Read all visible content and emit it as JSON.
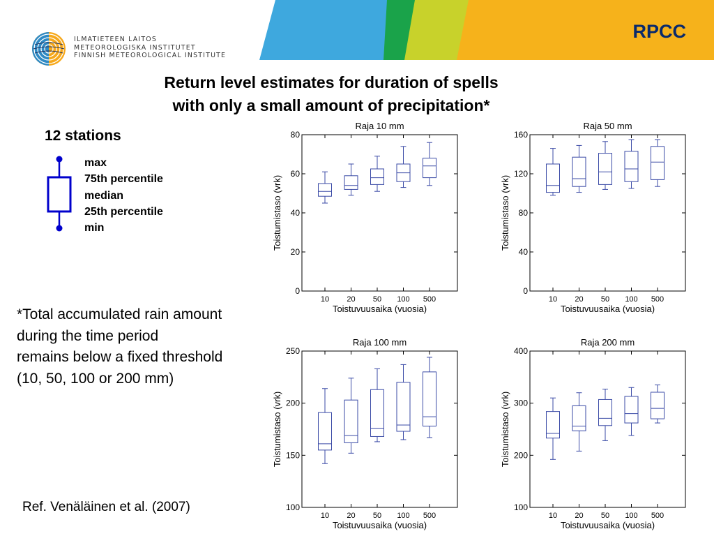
{
  "header": {
    "logo_lines": [
      "ILMATIETEEN LAITOS",
      "METEOROLOGISKA INSTITUTET",
      "FINNISH METEOROLOGICAL INSTITUTE"
    ],
    "tag": "RPCC",
    "colors": {
      "blue": "#3ea8de",
      "green": "#1aa34a",
      "lime": "#c8d22b",
      "orange": "#f6b21b",
      "tag": "#0a2a6b"
    }
  },
  "title": {
    "line1": "Return level estimates for duration of spells",
    "line2": "with only a small amount of precipitation*"
  },
  "legend": {
    "heading": "12 stations",
    "labels": [
      "max",
      "75th percentile",
      "median",
      "25th percentile",
      "min"
    ],
    "color": "#0000cc"
  },
  "note": {
    "lines": [
      "*Total accumulated rain amount",
      "during the time period",
      "remains below a fixed threshold",
      "(10, 50, 100 or 200 mm)"
    ]
  },
  "reference": "Ref. Venäläinen et al. (2007)",
  "chart_data": [
    {
      "type": "boxplot",
      "title": "Raja 10 mm",
      "xlabel": "Toistuvuusaika (vuosia)",
      "ylabel": "Toistumistaso (vrk)",
      "categories": [
        "10",
        "20",
        "50",
        "100",
        "500"
      ],
      "yticks": [
        0,
        20,
        40,
        60,
        80
      ],
      "ylim": [
        0,
        80
      ],
      "boxes": [
        {
          "min": 45,
          "q1": 48.5,
          "median": 51,
          "q3": 55,
          "max": 61
        },
        {
          "min": 49,
          "q1": 52,
          "median": 54,
          "q3": 59,
          "max": 65
        },
        {
          "min": 51,
          "q1": 54.5,
          "median": 58,
          "q3": 62.5,
          "max": 69
        },
        {
          "min": 53,
          "q1": 56,
          "median": 60.5,
          "q3": 65,
          "max": 74
        },
        {
          "min": 54,
          "q1": 58,
          "median": 64,
          "q3": 68,
          "max": 76
        }
      ]
    },
    {
      "type": "boxplot",
      "title": "Raja 50 mm",
      "xlabel": "Toistuvuusaika (vuosia)",
      "ylabel": "Toistumistaso (vrk)",
      "categories": [
        "10",
        "20",
        "50",
        "100",
        "500"
      ],
      "yticks": [
        0,
        40,
        80,
        120,
        160
      ],
      "ylim": [
        0,
        160
      ],
      "boxes": [
        {
          "min": 98,
          "q1": 101,
          "median": 108,
          "q3": 130,
          "max": 146
        },
        {
          "min": 101,
          "q1": 107,
          "median": 115,
          "q3": 137,
          "max": 149
        },
        {
          "min": 104,
          "q1": 109,
          "median": 122,
          "q3": 141,
          "max": 153
        },
        {
          "min": 105,
          "q1": 112,
          "median": 125,
          "q3": 143,
          "max": 155
        },
        {
          "min": 107,
          "q1": 114,
          "median": 132,
          "q3": 148,
          "max": 155
        }
      ]
    },
    {
      "type": "boxplot",
      "title": "Raja 100 mm",
      "xlabel": "Toistuvuusaika (vuosia)",
      "ylabel": "Toistumistaso (vrk)",
      "categories": [
        "10",
        "20",
        "50",
        "100",
        "500"
      ],
      "yticks": [
        100,
        150,
        200,
        250
      ],
      "ylim": [
        100,
        250
      ],
      "boxes": [
        {
          "min": 142,
          "q1": 155,
          "median": 161,
          "q3": 191,
          "max": 214
        },
        {
          "min": 152,
          "q1": 162,
          "median": 169,
          "q3": 203,
          "max": 224
        },
        {
          "min": 163,
          "q1": 168,
          "median": 176,
          "q3": 213,
          "max": 233
        },
        {
          "min": 165,
          "q1": 173,
          "median": 179,
          "q3": 220,
          "max": 237
        },
        {
          "min": 167,
          "q1": 178,
          "median": 187,
          "q3": 230,
          "max": 244
        }
      ]
    },
    {
      "type": "boxplot",
      "title": "Raja 200 mm",
      "xlabel": "Toistuvuusaika (vuosia)",
      "ylabel": "Toistumistaso (vrk)",
      "categories": [
        "10",
        "20",
        "50",
        "100",
        "500"
      ],
      "yticks": [
        100,
        200,
        300,
        400
      ],
      "ylim": [
        100,
        400
      ],
      "boxes": [
        {
          "min": 192,
          "q1": 233,
          "median": 242,
          "q3": 284,
          "max": 310
        },
        {
          "min": 208,
          "q1": 247,
          "median": 256,
          "q3": 295,
          "max": 320
        },
        {
          "min": 228,
          "q1": 257,
          "median": 271,
          "q3": 307,
          "max": 327
        },
        {
          "min": 238,
          "q1": 262,
          "median": 280,
          "q3": 313,
          "max": 330
        },
        {
          "min": 262,
          "q1": 270,
          "median": 290,
          "q3": 321,
          "max": 335
        }
      ]
    }
  ]
}
